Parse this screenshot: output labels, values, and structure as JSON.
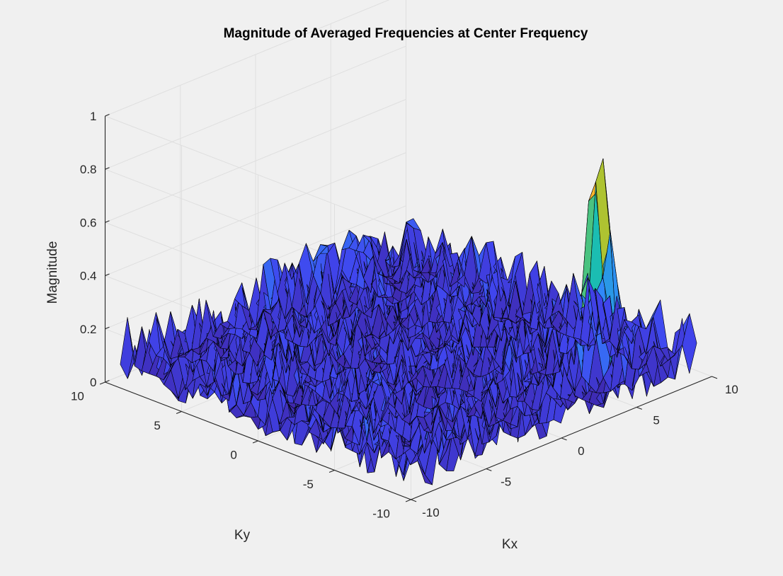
{
  "chart_data": {
    "type": "surface",
    "title": "Magnitude of Averaged Frequencies at Center Frequency",
    "xlabel": "Kx",
    "ylabel": "Ky",
    "zlabel": "Magnitude",
    "xlim": [
      -10,
      10
    ],
    "ylim": [
      -10,
      10
    ],
    "zlim": [
      0,
      1
    ],
    "x_ticks": [
      "-10",
      "-5",
      "0",
      "5",
      "10"
    ],
    "y_ticks": [
      "-10",
      "-5",
      "0",
      "5",
      "10"
    ],
    "z_ticks": [
      "0",
      "0.2",
      "0.4",
      "0.6",
      "0.8",
      "1"
    ],
    "grid": true,
    "colormap": "parula",
    "surface": {
      "x_range": [
        -9.5,
        9.5
      ],
      "y_range": [
        -9.5,
        9.5
      ],
      "noise_floor_max": 0.25,
      "peak": {
        "kx": 6,
        "ky": -6.5,
        "magnitude": 0.86
      }
    },
    "colors": {
      "background": "#f0f0f0",
      "axes_line": "#262626",
      "grid": "#dfdfdf",
      "edge": "#000000",
      "low": "#3e26a8",
      "mid": "#2f8bfa",
      "teal": "#19c3aa",
      "high": "#f9b72e"
    }
  }
}
